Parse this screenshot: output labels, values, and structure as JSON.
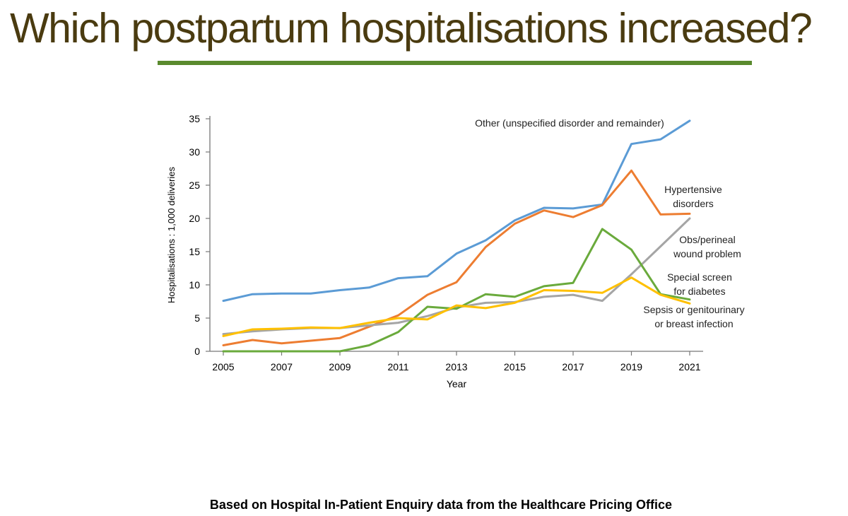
{
  "slide": {
    "title": "Which postpartum hospitalisations increased?",
    "title_color": "#4a3b10",
    "rule_color": "#5a8a2e",
    "source": "Based on Hospital In-Patient Enquiry data from the Healthcare Pricing Office"
  },
  "chart_data": {
    "type": "line",
    "title": "",
    "xlabel": "Year",
    "ylabel": "Hospitalisations : 1,000 deliveries",
    "xlim": [
      2005,
      2021
    ],
    "ylim": [
      0,
      35
    ],
    "x_ticks": [
      2005,
      2007,
      2009,
      2011,
      2013,
      2015,
      2017,
      2019,
      2021
    ],
    "y_ticks": [
      0,
      5,
      10,
      15,
      20,
      25,
      30,
      35
    ],
    "grid": false,
    "x": [
      2005,
      2006,
      2007,
      2008,
      2009,
      2010,
      2011,
      2012,
      2013,
      2014,
      2015,
      2016,
      2017,
      2018,
      2019,
      2020,
      2021
    ],
    "series": [
      {
        "name": "Other (unspecified disorder and remainder)",
        "label_lines": [
          "Other (unspecified disorder and remainder)"
        ],
        "color": "#5b9bd5",
        "values": [
          7.6,
          8.6,
          8.7,
          8.7,
          9.2,
          9.6,
          11.0,
          11.3,
          14.7,
          16.7,
          19.7,
          21.6,
          21.5,
          22.1,
          31.2,
          31.9,
          34.7
        ]
      },
      {
        "name": "Hypertensive disorders",
        "label_lines": [
          "Hypertensive",
          "disorders"
        ],
        "color": "#ed7d31",
        "values": [
          0.9,
          1.7,
          1.2,
          1.6,
          2.0,
          3.7,
          5.4,
          8.5,
          10.4,
          15.7,
          19.2,
          21.2,
          20.2,
          22.0,
          27.2,
          20.6,
          20.7
        ]
      },
      {
        "name": "Obs/perineal wound problem",
        "label_lines": [
          "Obs/perineal",
          "wound problem"
        ],
        "color": "#a5a5a5",
        "values": [
          2.6,
          3.0,
          3.3,
          3.5,
          3.5,
          3.9,
          4.3,
          5.3,
          6.6,
          7.3,
          7.4,
          8.2,
          8.5,
          7.6,
          11.6,
          15.8,
          20.0
        ]
      },
      {
        "name": "Special screen for diabetes",
        "label_lines": [
          "Special screen",
          "for diabetes"
        ],
        "color": "#6aaa3c",
        "values": [
          0.0,
          0.0,
          0.0,
          0.0,
          0.0,
          0.9,
          2.9,
          6.7,
          6.4,
          8.6,
          8.2,
          9.8,
          10.3,
          18.4,
          15.3,
          8.6,
          7.8
        ]
      },
      {
        "name": "Sepsis or genitourinary or breast infection",
        "label_lines": [
          "Sepsis or genitourinary",
          "or breast infection"
        ],
        "color": "#ffc000",
        "values": [
          2.3,
          3.3,
          3.4,
          3.6,
          3.5,
          4.3,
          5.0,
          4.8,
          6.9,
          6.5,
          7.3,
          9.2,
          9.1,
          8.8,
          11.1,
          8.5,
          7.2
        ]
      }
    ]
  }
}
